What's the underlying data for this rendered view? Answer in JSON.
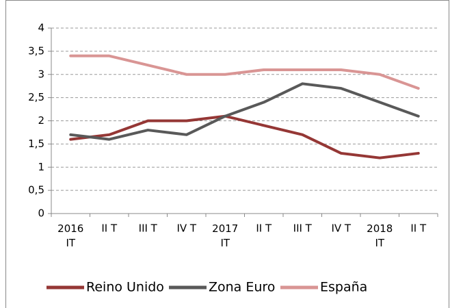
{
  "chart_data": {
    "type": "line",
    "categories": [
      "2016\nIT",
      "II T",
      "III T",
      "IV T",
      "2017\nIT",
      "II T",
      "III T",
      "IV T",
      "2018\nIT",
      "II T"
    ],
    "series": [
      {
        "name": "Reino Unido",
        "color": "#953735",
        "values": [
          1.6,
          1.7,
          2.0,
          2.0,
          2.1,
          1.9,
          1.7,
          1.3,
          1.2,
          1.3
        ]
      },
      {
        "name": "Zona Euro",
        "color": "#595959",
        "values": [
          1.7,
          1.6,
          1.8,
          1.7,
          2.1,
          2.4,
          2.8,
          2.7,
          2.4,
          2.1
        ]
      },
      {
        "name": "España",
        "color": "#d99594",
        "values": [
          3.4,
          3.4,
          3.2,
          3.0,
          3.0,
          3.1,
          3.1,
          3.1,
          3.0,
          2.7
        ]
      }
    ],
    "ylim": [
      0,
      4
    ],
    "yticks": [
      0,
      {
        "value": 0.5,
        "label": "0,5"
      },
      1,
      {
        "value": 1.5,
        "label": "1,5"
      },
      2,
      {
        "value": 2.5,
        "label": "2,5"
      },
      3,
      {
        "value": 3.5,
        "label": "3,5"
      },
      4
    ],
    "grid": true,
    "legend": "bottom"
  }
}
